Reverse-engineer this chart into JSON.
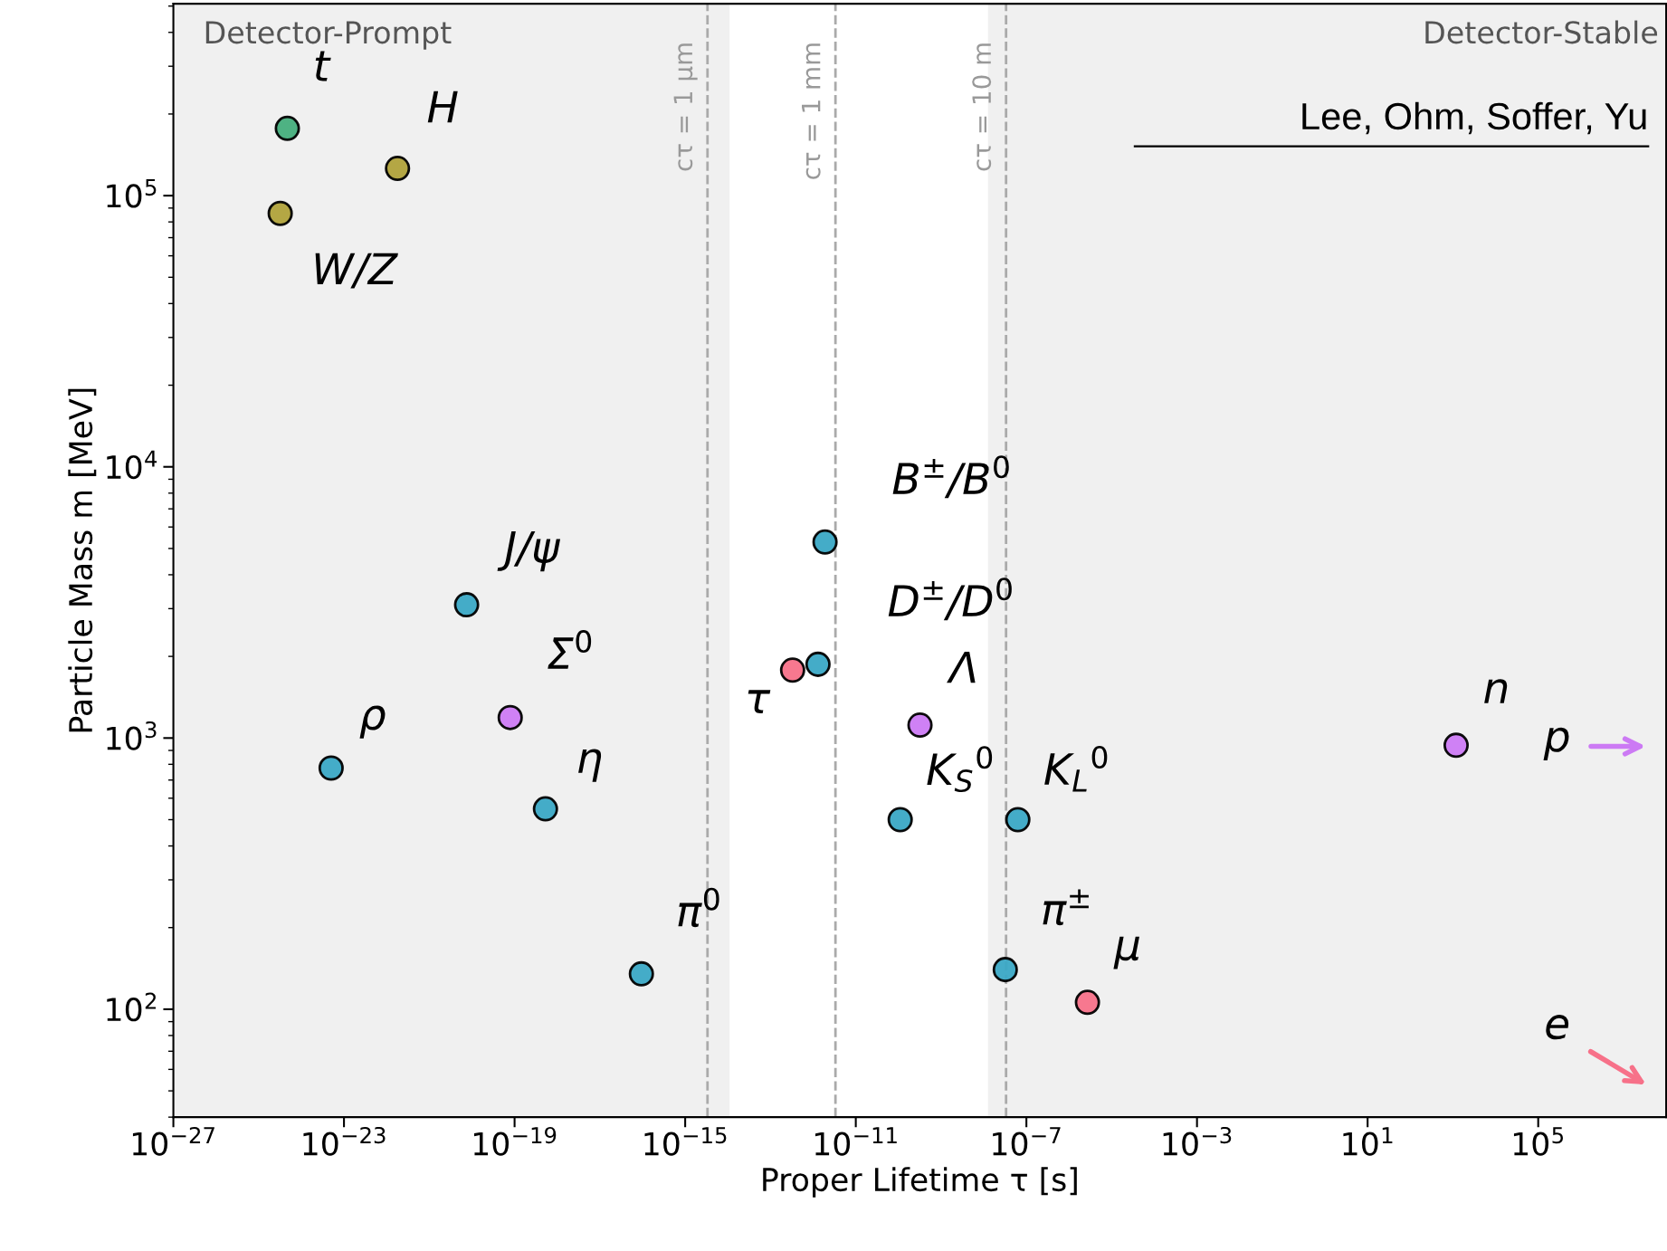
{
  "chart_data": {
    "type": "scatter",
    "xlabel": "Proper Lifetime τ [s]",
    "ylabel": "Particle Mass m [MeV]",
    "log": "xy",
    "grid": false,
    "marker": "circle",
    "xlim": [
      1e-27,
      100000000.0
    ],
    "ylim": [
      40,
      510000
    ],
    "xticks": [
      {
        "value": 1e-27,
        "label": "10$^{−27}$"
      },
      {
        "value": 1e-23,
        "label": "10$^{−23}$"
      },
      {
        "value": 1e-19,
        "label": "10$^{−19}$"
      },
      {
        "value": 1e-15,
        "label": "10$^{−15}$"
      },
      {
        "value": 1e-11,
        "label": "10$^{−11}$"
      },
      {
        "value": 1e-07,
        "label": "10$^{−7}$"
      },
      {
        "value": 0.001,
        "label": "10$^{−3}$"
      },
      {
        "value": 10,
        "label": "10$^{1}$"
      },
      {
        "value": 100000,
        "label": "10$^{5}$"
      }
    ],
    "yticks": [
      {
        "value": 100,
        "label": "10$^{2}$"
      },
      {
        "value": 1000,
        "label": "10$^{3}$"
      },
      {
        "value": 10000,
        "label": "10$^{4}$"
      },
      {
        "value": 100000,
        "label": "10$^{5}$"
      }
    ],
    "series": [
      {
        "color": "#45ae7c",
        "x": [
          4.7e-25
        ],
        "values": [
          177000
        ]
      },
      {
        "color": "#b0a23a",
        "x": [
          1.8e-22,
          3.2e-25
        ],
        "values": [
          126000,
          86000
        ]
      },
      {
        "color": "#f77189",
        "x": [
          3.3e-13,
          2.7e-06
        ],
        "values": [
          1780,
          106
        ]
      },
      {
        "color": "#cc7af4",
        "x": [
          7.9e-20,
          3.2e-10,
          1190
        ],
        "values": [
          1190,
          1116,
          940
        ]
      },
      {
        "color": "#3aa8c5",
        "x": [
          5e-24,
          7.5e-21,
          5.3e-19,
          9.4e-17,
          1.3e-12,
          1.9e-12,
          1.1e-10,
          6.3e-08,
          3.2e-08
        ],
        "values": [
          775,
          3100,
          548,
          135,
          1870,
          5280,
          500,
          500,
          140
        ]
      }
    ],
    "annotations": [
      {
        "text": "t",
        "x": 4.7e-25,
        "y": 177000
      },
      {
        "text": "H",
        "x": 1.8e-22,
        "y": 126000
      },
      {
        "text": "W/Z",
        "x": 3.2e-25,
        "y": 86000
      },
      {
        "text": "ρ",
        "x": 5e-24,
        "y": 775
      },
      {
        "text": "J/ψ",
        "x": 7.5e-21,
        "y": 3100
      },
      {
        "text": "Σ$^{0}$",
        "x": 7.9e-20,
        "y": 1190
      },
      {
        "text": "η",
        "x": 5.3e-19,
        "y": 548
      },
      {
        "text": "π$^{0}$",
        "x": 9.4e-17,
        "y": 135
      },
      {
        "text": "τ",
        "x": 3.3e-13,
        "y": 1780
      },
      {
        "text": "D$^{±}$/D$^{0}$",
        "x": 1.3e-12,
        "y": 1870
      },
      {
        "text": "B$^{±}$/B$^{0}$",
        "x": 1.9e-12,
        "y": 5280
      },
      {
        "text": "Λ",
        "x": 3.2e-10,
        "y": 1116
      },
      {
        "text": "K$_{S}$$^{0}$",
        "x": 1.1e-10,
        "y": 500
      },
      {
        "text": "K$_{L}$$^{0}$",
        "x": 6.3e-08,
        "y": 500
      },
      {
        "text": "π$^{±}$",
        "x": 3.2e-08,
        "y": 140
      },
      {
        "text": "μ",
        "x": 2.7e-06,
        "y": 106
      },
      {
        "text": "n",
        "x": 1190,
        "y": 940
      },
      "p",
      "e",
      "Lee, Ohm, Soffer, Yu",
      "cτ = 1 μm",
      "cτ = 1 mm",
      "cτ = 10 m"
    ],
    "bands": [
      {
        "axis": "x",
        "from": 1e-27,
        "to": 1.1e-14,
        "label": "Detector-Prompt",
        "color": "#f0f0f0"
      },
      {
        "axis": "x",
        "from": 1.26e-08,
        "to": 100000000.0,
        "label": "Detector-Stable",
        "color": "#f0f0f0"
      }
    ],
    "ref_lines": [
      {
        "axis": "x",
        "value": 3.336e-15,
        "color": "#aaaaaa",
        "line_style": "dashed"
      },
      {
        "axis": "x",
        "value": 3.336e-12,
        "color": "#aaaaaa",
        "line_style": "dashed"
      },
      {
        "axis": "x",
        "value": 3.336e-08,
        "color": "#aaaaaa",
        "line_style": "dashed"
      }
    ]
  }
}
